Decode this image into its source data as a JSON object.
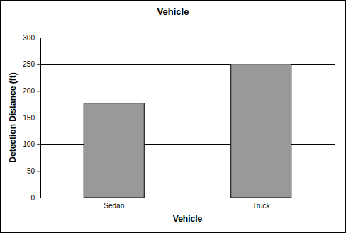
{
  "chart_data": {
    "type": "bar",
    "title": "Vehicle",
    "x_label": "Vehicle",
    "y_label": "Detection Distance (ft)",
    "categories": [
      "Sedan",
      "Truck"
    ],
    "values": [
      177,
      250
    ],
    "color": "#999999",
    "ylim": [
      0,
      300
    ],
    "yticks": [
      0,
      50,
      100,
      150,
      200,
      250,
      300
    ],
    "grid": true
  }
}
